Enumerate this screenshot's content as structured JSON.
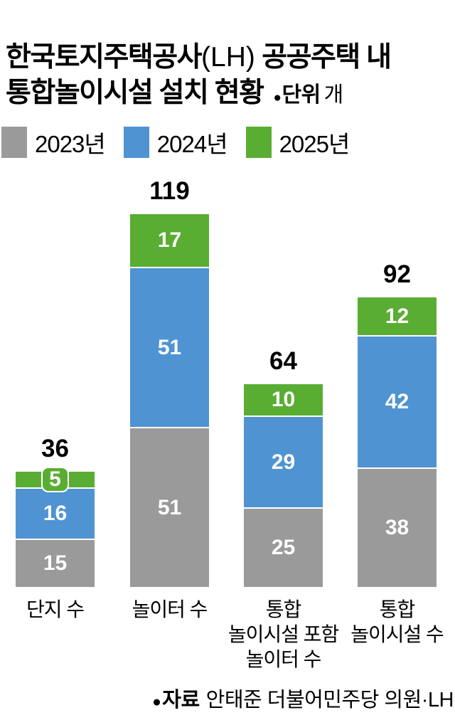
{
  "title": {
    "line1_main": "한국토지주택공사",
    "line1_paren": "(LH)",
    "line1_rest": " 공공주택 내",
    "line2": "통합놀이시설 설치 현황"
  },
  "unit_note": {
    "bullet": "●",
    "label": "단위",
    "value": "개"
  },
  "legend": {
    "items": [
      {
        "label": "2023년",
        "color": "#9a9a9a"
      },
      {
        "label": "2024년",
        "color": "#4f93d2"
      },
      {
        "label": "2025년",
        "color": "#5aad33"
      }
    ]
  },
  "chart_data": {
    "type": "bar",
    "stacked": true,
    "orientation": "vertical",
    "unit": "개",
    "grid": false,
    "legend_position": "top",
    "value_labels": "white-inside-segments",
    "categories": [
      "단지 수",
      "놀이터 수",
      "통합\n놀이시설 포함\n놀이터 수",
      "통합\n놀이시설 수"
    ],
    "series": [
      {
        "name": "2023년",
        "color": "#9a9a9a",
        "values": [
          15,
          51,
          25,
          38
        ]
      },
      {
        "name": "2024년",
        "color": "#4f93d2",
        "values": [
          16,
          51,
          29,
          42
        ]
      },
      {
        "name": "2025년",
        "color": "#5aad33",
        "values": [
          5,
          17,
          10,
          12
        ]
      }
    ],
    "totals": [
      36,
      119,
      64,
      92
    ]
  },
  "source": {
    "bullet": "●",
    "label": "자료",
    "text": "안태준 더불어민주당 의원·LH"
  }
}
